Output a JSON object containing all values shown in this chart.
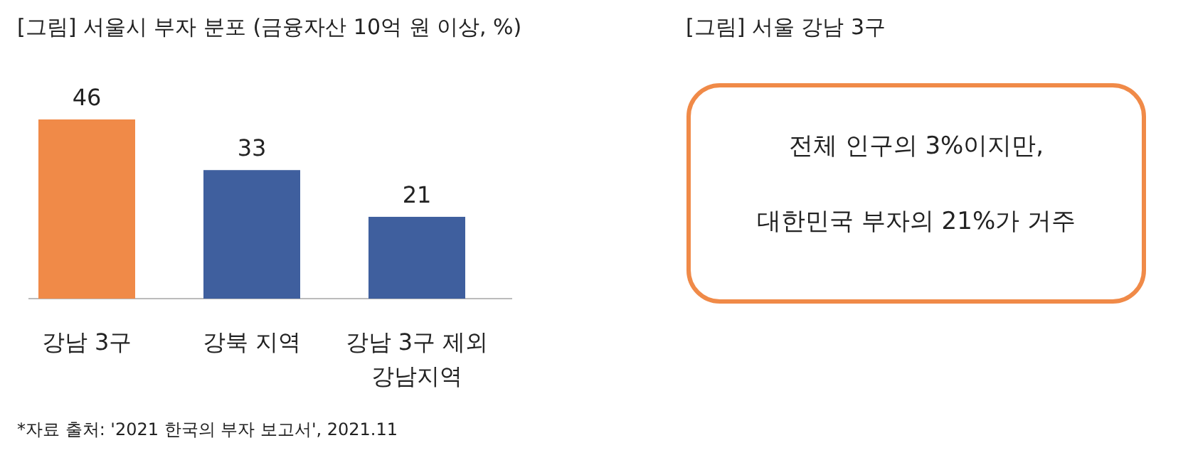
{
  "chart_data": [
    {
      "type": "bar",
      "title": "[그림] 서울시 부자 분포 (금융자산 10억 원 이상, %)",
      "categories": [
        "강남 3구",
        "강북 지역",
        "강남 3구 제외 강남지역"
      ],
      "values": [
        46,
        33,
        21
      ],
      "colors": [
        "#f08a48",
        "#3f5f9e",
        "#3f5f9e"
      ],
      "data_labels": true,
      "annotations": [
        "*자료 출처: '2021 한국의 부자 보고서', 2021.11"
      ]
    },
    {
      "type": "other",
      "title": "[그림] 서울 강남 3구",
      "annotations": [
        "전체 인구의 3%이지만,",
        "대한민국 부자의 21%가 거주"
      ]
    }
  ]
}
